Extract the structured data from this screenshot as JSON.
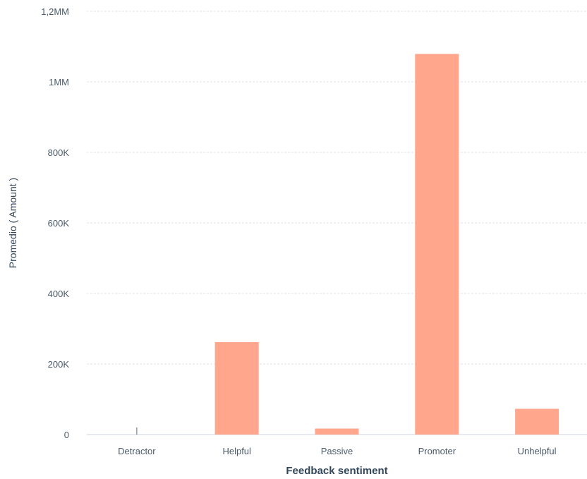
{
  "chart_data": {
    "type": "bar",
    "categories": [
      "Detractor",
      "Helpful",
      "Passive",
      "Promoter",
      "Unhelpful"
    ],
    "values": [
      0,
      262000,
      17000,
      1079000,
      73000
    ],
    "ylim": [
      0,
      1200000
    ],
    "yticks": [
      0,
      200000,
      400000,
      600000,
      800000,
      1000000,
      1200000
    ],
    "ytick_labels": [
      "0",
      "200K",
      "400K",
      "600K",
      "800K",
      "1MM",
      "1,2MM"
    ],
    "xlabel": "Feedback sentiment",
    "ylabel": "Promedio ( Amount )",
    "grid": true,
    "legend": "none"
  },
  "colors": {
    "bar": "#ffa68c",
    "grid": "#dfe3eb",
    "axis_text": "#4a5a6a",
    "title_text": "#33475b"
  }
}
